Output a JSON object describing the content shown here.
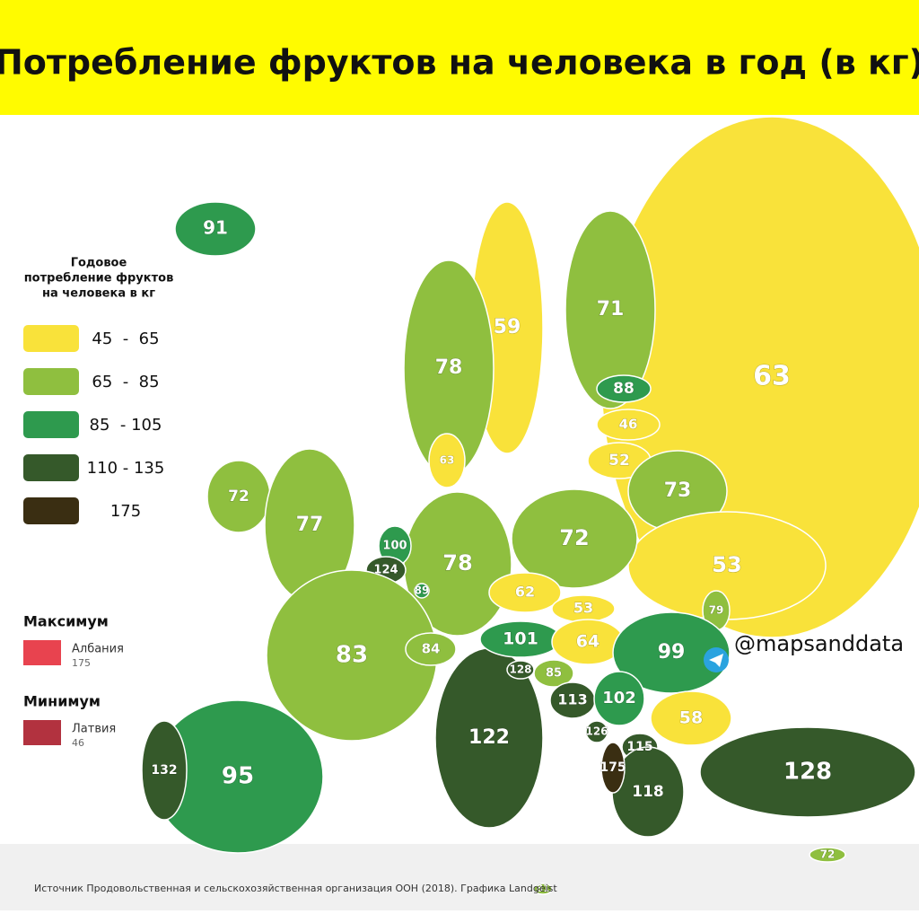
{
  "title": "Потребление фруктов на человека в год (в кг)",
  "legend": {
    "title_lines": [
      "Годовое",
      "потребление фруктов",
      "на человека в кг"
    ],
    "items": [
      {
        "label": "45  -  65",
        "color": "#f9e23a"
      },
      {
        "label": "65  -  85",
        "color": "#8fbf3f"
      },
      {
        "label": "85  - 105",
        "color": "#2e9a4e"
      },
      {
        "label": "110 - 135",
        "color": "#35592a"
      },
      {
        "label": "175",
        "color": "#3a2e12"
      }
    ]
  },
  "maximum": {
    "title": "Максимум",
    "country": "Албания",
    "value": 175,
    "flag_color": "#e8434f"
  },
  "minimum": {
    "title": "Минимум",
    "country": "Латвия",
    "value": 46,
    "flag_color": "#b2323f"
  },
  "handle": "@mapsanddata",
  "source": "Источник Продовольственная и сельскохозяйственная организация ООН (2018). Графика Landgeist",
  "regions": [
    {
      "value": 63,
      "color": "#f9e23a"
    },
    {
      "value": 91,
      "color": "#2e9a4e"
    },
    {
      "value": 59,
      "color": "#f9e23a"
    },
    {
      "value": 71,
      "color": "#8fbf3f"
    },
    {
      "value": 78,
      "color": "#8fbf3f"
    },
    {
      "value": 88,
      "color": "#2e9a4e"
    },
    {
      "value": 46,
      "color": "#f9e23a"
    },
    {
      "value": 52,
      "color": "#f9e23a"
    },
    {
      "value": 63,
      "color": "#f9e23a"
    },
    {
      "value": 73,
      "color": "#8fbf3f"
    },
    {
      "value": 72,
      "color": "#8fbf3f"
    },
    {
      "value": 77,
      "color": "#8fbf3f"
    },
    {
      "value": 53,
      "color": "#f9e23a"
    },
    {
      "value": 72,
      "color": "#8fbf3f"
    },
    {
      "value": 78,
      "color": "#8fbf3f"
    },
    {
      "value": 100,
      "color": "#2e9a4e"
    },
    {
      "value": 124,
      "color": "#35592a"
    },
    {
      "value": 89,
      "color": "#2e9a4e"
    },
    {
      "value": 83,
      "color": "#8fbf3f"
    },
    {
      "value": 95,
      "color": "#2e9a4e"
    },
    {
      "value": 132,
      "color": "#35592a"
    },
    {
      "value": 128,
      "color": "#35592a"
    },
    {
      "value": 122,
      "color": "#35592a"
    },
    {
      "value": 62,
      "color": "#f9e23a"
    },
    {
      "value": 53,
      "color": "#f9e23a"
    },
    {
      "value": 79,
      "color": "#8fbf3f"
    },
    {
      "value": 101,
      "color": "#2e9a4e"
    },
    {
      "value": 64,
      "color": "#f9e23a"
    },
    {
      "value": 99,
      "color": "#2e9a4e"
    },
    {
      "value": 84,
      "color": "#8fbf3f"
    },
    {
      "value": 128,
      "color": "#35592a"
    },
    {
      "value": 85,
      "color": "#8fbf3f"
    },
    {
      "value": 113,
      "color": "#35592a"
    },
    {
      "value": 102,
      "color": "#2e9a4e"
    },
    {
      "value": 58,
      "color": "#f9e23a"
    },
    {
      "value": 126,
      "color": "#35592a"
    },
    {
      "value": 115,
      "color": "#35592a"
    },
    {
      "value": 118,
      "color": "#35592a"
    },
    {
      "value": 175,
      "color": "#3a2e12"
    },
    {
      "value": 72,
      "color": "#8fbf3f"
    },
    {
      "value": 81,
      "color": "#8fbf3f"
    }
  ]
}
